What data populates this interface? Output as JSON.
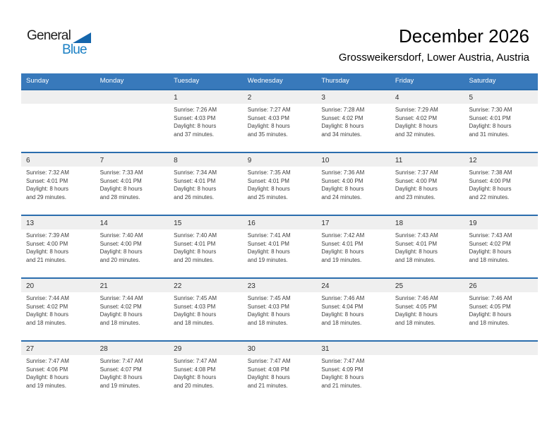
{
  "logo": {
    "part1": "General",
    "part2": "Blue"
  },
  "header": {
    "title": "December 2026",
    "subtitle": "Grossweikersdorf, Lower Austria, Austria"
  },
  "weekdays": [
    "Sunday",
    "Monday",
    "Tuesday",
    "Wednesday",
    "Thursday",
    "Friday",
    "Saturday"
  ],
  "colors": {
    "header_bg": "#3879BB",
    "week_divider": "#2B6DAD",
    "day_band_bg": "#EFEFEF",
    "header_text": "#FFFFFF",
    "logo_blue": "#1B80C4",
    "logo_triangle": "#1566AC"
  },
  "weeks": [
    [
      {
        "day": "",
        "sunrise": "",
        "sunset": "",
        "daylight1": "",
        "daylight2": ""
      },
      {
        "day": "",
        "sunrise": "",
        "sunset": "",
        "daylight1": "",
        "daylight2": ""
      },
      {
        "day": "1",
        "sunrise": "Sunrise: 7:26 AM",
        "sunset": "Sunset: 4:03 PM",
        "daylight1": "Daylight: 8 hours",
        "daylight2": "and 37 minutes."
      },
      {
        "day": "2",
        "sunrise": "Sunrise: 7:27 AM",
        "sunset": "Sunset: 4:03 PM",
        "daylight1": "Daylight: 8 hours",
        "daylight2": "and 35 minutes."
      },
      {
        "day": "3",
        "sunrise": "Sunrise: 7:28 AM",
        "sunset": "Sunset: 4:02 PM",
        "daylight1": "Daylight: 8 hours",
        "daylight2": "and 34 minutes."
      },
      {
        "day": "4",
        "sunrise": "Sunrise: 7:29 AM",
        "sunset": "Sunset: 4:02 PM",
        "daylight1": "Daylight: 8 hours",
        "daylight2": "and 32 minutes."
      },
      {
        "day": "5",
        "sunrise": "Sunrise: 7:30 AM",
        "sunset": "Sunset: 4:01 PM",
        "daylight1": "Daylight: 8 hours",
        "daylight2": "and 31 minutes."
      }
    ],
    [
      {
        "day": "6",
        "sunrise": "Sunrise: 7:32 AM",
        "sunset": "Sunset: 4:01 PM",
        "daylight1": "Daylight: 8 hours",
        "daylight2": "and 29 minutes."
      },
      {
        "day": "7",
        "sunrise": "Sunrise: 7:33 AM",
        "sunset": "Sunset: 4:01 PM",
        "daylight1": "Daylight: 8 hours",
        "daylight2": "and 28 minutes."
      },
      {
        "day": "8",
        "sunrise": "Sunrise: 7:34 AM",
        "sunset": "Sunset: 4:01 PM",
        "daylight1": "Daylight: 8 hours",
        "daylight2": "and 26 minutes."
      },
      {
        "day": "9",
        "sunrise": "Sunrise: 7:35 AM",
        "sunset": "Sunset: 4:01 PM",
        "daylight1": "Daylight: 8 hours",
        "daylight2": "and 25 minutes."
      },
      {
        "day": "10",
        "sunrise": "Sunrise: 7:36 AM",
        "sunset": "Sunset: 4:00 PM",
        "daylight1": "Daylight: 8 hours",
        "daylight2": "and 24 minutes."
      },
      {
        "day": "11",
        "sunrise": "Sunrise: 7:37 AM",
        "sunset": "Sunset: 4:00 PM",
        "daylight1": "Daylight: 8 hours",
        "daylight2": "and 23 minutes."
      },
      {
        "day": "12",
        "sunrise": "Sunrise: 7:38 AM",
        "sunset": "Sunset: 4:00 PM",
        "daylight1": "Daylight: 8 hours",
        "daylight2": "and 22 minutes."
      }
    ],
    [
      {
        "day": "13",
        "sunrise": "Sunrise: 7:39 AM",
        "sunset": "Sunset: 4:00 PM",
        "daylight1": "Daylight: 8 hours",
        "daylight2": "and 21 minutes."
      },
      {
        "day": "14",
        "sunrise": "Sunrise: 7:40 AM",
        "sunset": "Sunset: 4:00 PM",
        "daylight1": "Daylight: 8 hours",
        "daylight2": "and 20 minutes."
      },
      {
        "day": "15",
        "sunrise": "Sunrise: 7:40 AM",
        "sunset": "Sunset: 4:01 PM",
        "daylight1": "Daylight: 8 hours",
        "daylight2": "and 20 minutes."
      },
      {
        "day": "16",
        "sunrise": "Sunrise: 7:41 AM",
        "sunset": "Sunset: 4:01 PM",
        "daylight1": "Daylight: 8 hours",
        "daylight2": "and 19 minutes."
      },
      {
        "day": "17",
        "sunrise": "Sunrise: 7:42 AM",
        "sunset": "Sunset: 4:01 PM",
        "daylight1": "Daylight: 8 hours",
        "daylight2": "and 19 minutes."
      },
      {
        "day": "18",
        "sunrise": "Sunrise: 7:43 AM",
        "sunset": "Sunset: 4:01 PM",
        "daylight1": "Daylight: 8 hours",
        "daylight2": "and 18 minutes."
      },
      {
        "day": "19",
        "sunrise": "Sunrise: 7:43 AM",
        "sunset": "Sunset: 4:02 PM",
        "daylight1": "Daylight: 8 hours",
        "daylight2": "and 18 minutes."
      }
    ],
    [
      {
        "day": "20",
        "sunrise": "Sunrise: 7:44 AM",
        "sunset": "Sunset: 4:02 PM",
        "daylight1": "Daylight: 8 hours",
        "daylight2": "and 18 minutes."
      },
      {
        "day": "21",
        "sunrise": "Sunrise: 7:44 AM",
        "sunset": "Sunset: 4:02 PM",
        "daylight1": "Daylight: 8 hours",
        "daylight2": "and 18 minutes."
      },
      {
        "day": "22",
        "sunrise": "Sunrise: 7:45 AM",
        "sunset": "Sunset: 4:03 PM",
        "daylight1": "Daylight: 8 hours",
        "daylight2": "and 18 minutes."
      },
      {
        "day": "23",
        "sunrise": "Sunrise: 7:45 AM",
        "sunset": "Sunset: 4:03 PM",
        "daylight1": "Daylight: 8 hours",
        "daylight2": "and 18 minutes."
      },
      {
        "day": "24",
        "sunrise": "Sunrise: 7:46 AM",
        "sunset": "Sunset: 4:04 PM",
        "daylight1": "Daylight: 8 hours",
        "daylight2": "and 18 minutes."
      },
      {
        "day": "25",
        "sunrise": "Sunrise: 7:46 AM",
        "sunset": "Sunset: 4:05 PM",
        "daylight1": "Daylight: 8 hours",
        "daylight2": "and 18 minutes."
      },
      {
        "day": "26",
        "sunrise": "Sunrise: 7:46 AM",
        "sunset": "Sunset: 4:05 PM",
        "daylight1": "Daylight: 8 hours",
        "daylight2": "and 18 minutes."
      }
    ],
    [
      {
        "day": "27",
        "sunrise": "Sunrise: 7:47 AM",
        "sunset": "Sunset: 4:06 PM",
        "daylight1": "Daylight: 8 hours",
        "daylight2": "and 19 minutes."
      },
      {
        "day": "28",
        "sunrise": "Sunrise: 7:47 AM",
        "sunset": "Sunset: 4:07 PM",
        "daylight1": "Daylight: 8 hours",
        "daylight2": "and 19 minutes."
      },
      {
        "day": "29",
        "sunrise": "Sunrise: 7:47 AM",
        "sunset": "Sunset: 4:08 PM",
        "daylight1": "Daylight: 8 hours",
        "daylight2": "and 20 minutes."
      },
      {
        "day": "30",
        "sunrise": "Sunrise: 7:47 AM",
        "sunset": "Sunset: 4:08 PM",
        "daylight1": "Daylight: 8 hours",
        "daylight2": "and 21 minutes."
      },
      {
        "day": "31",
        "sunrise": "Sunrise: 7:47 AM",
        "sunset": "Sunset: 4:09 PM",
        "daylight1": "Daylight: 8 hours",
        "daylight2": "and 21 minutes."
      },
      {
        "day": "",
        "sunrise": "",
        "sunset": "",
        "daylight1": "",
        "daylight2": ""
      },
      {
        "day": "",
        "sunrise": "",
        "sunset": "",
        "daylight1": "",
        "daylight2": ""
      }
    ]
  ]
}
